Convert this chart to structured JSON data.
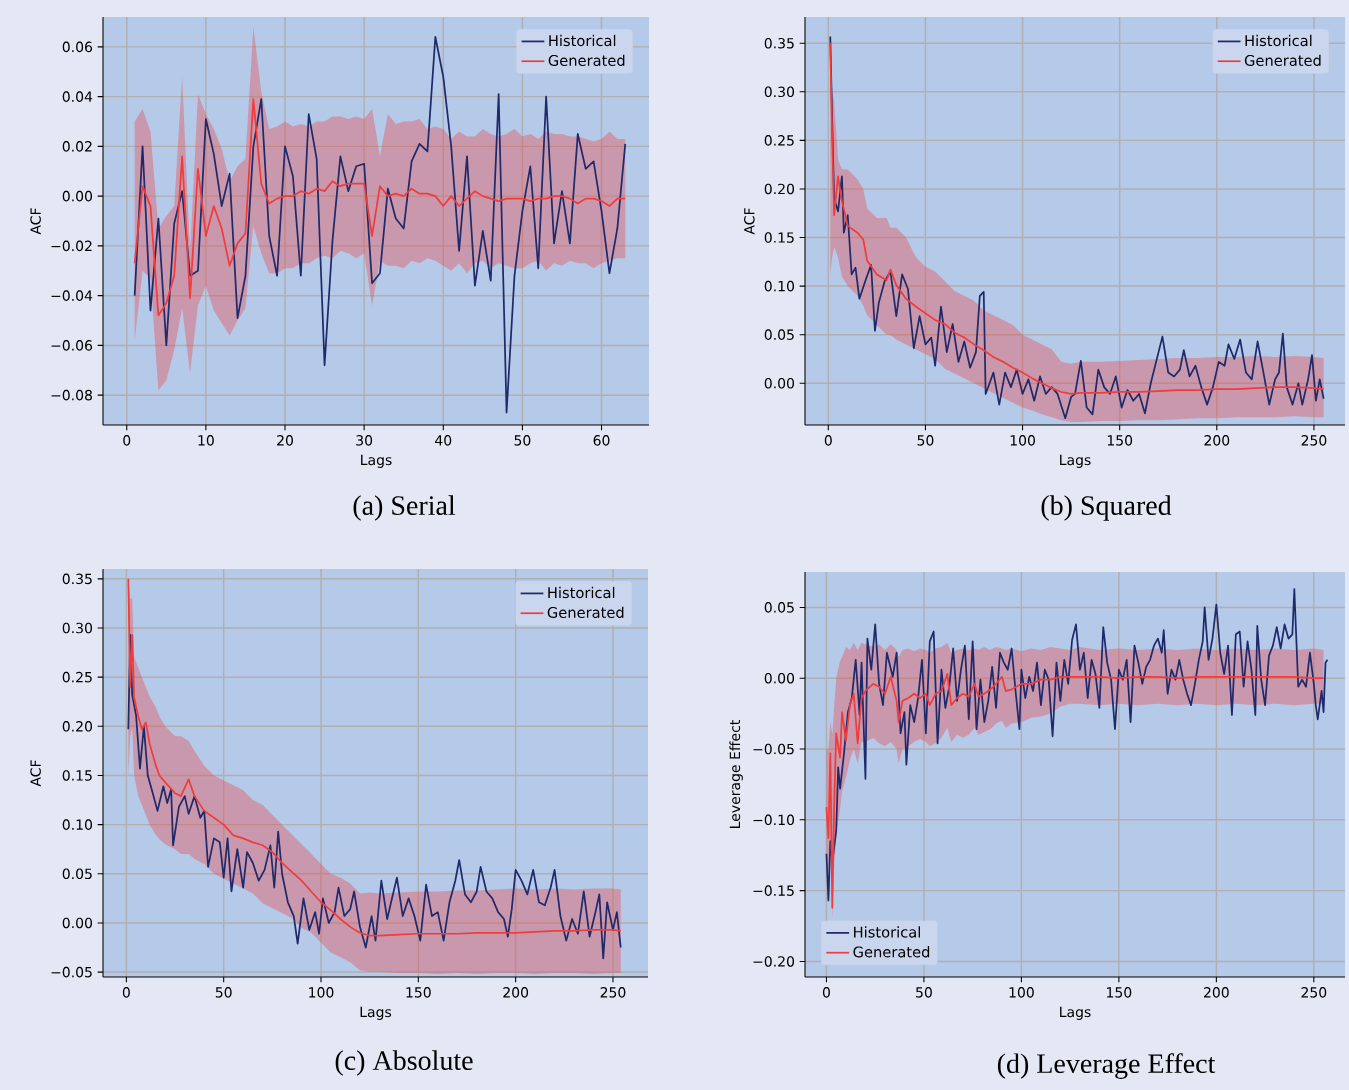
{
  "chart_data": [
    {
      "type": "line",
      "title": "(a) Serial",
      "xlabel": "Lags",
      "ylabel": "ACF",
      "xlim": [
        -3,
        66
      ],
      "ylim": [
        -0.092,
        0.072
      ],
      "xticks": [
        0,
        10,
        20,
        30,
        40,
        50,
        60
      ],
      "yticks": [
        {
          "value": -0.08,
          "label": "−0.08"
        },
        {
          "value": -0.06,
          "label": "−0.06"
        },
        {
          "value": -0.04,
          "label": "−0.04"
        },
        {
          "value": -0.02,
          "label": "−0.02"
        },
        {
          "value": 0,
          "label": "0.00"
        },
        {
          "value": 0.02,
          "label": "0.02"
        },
        {
          "value": 0.04,
          "label": "0.04"
        },
        {
          "value": 0.06,
          "label": "0.06"
        }
      ],
      "grid": true,
      "legend": "top right",
      "marker": "none",
      "line_style": "solid",
      "series": [
        {
          "name": "Historical",
          "color": "#1f2a6b",
          "x": [
            1,
            2,
            3,
            4,
            5,
            6,
            7,
            8,
            9,
            10,
            11,
            12,
            13,
            14,
            15,
            16,
            17,
            18,
            19,
            20,
            21,
            22,
            23,
            24,
            25,
            26,
            27,
            28,
            29,
            30,
            31,
            32,
            33,
            34,
            35,
            36,
            37,
            38,
            39,
            40,
            41,
            42,
            43,
            44,
            45,
            46,
            47,
            48,
            49,
            50,
            51,
            52,
            53,
            54,
            55,
            56,
            57,
            58,
            59,
            60,
            61,
            62,
            63
          ],
          "values": [
            -0.04,
            0.02,
            -0.046,
            -0.009,
            -0.06,
            -0.011,
            0.002,
            -0.032,
            -0.03,
            0.031,
            0.017,
            -0.004,
            0.009,
            -0.049,
            -0.032,
            0.02,
            0.039,
            -0.016,
            -0.032,
            0.02,
            0.008,
            -0.032,
            0.033,
            0.015,
            -0.068,
            -0.018,
            0.016,
            0.002,
            0.012,
            0.013,
            -0.035,
            -0.031,
            0.003,
            -0.009,
            -0.013,
            0.014,
            0.021,
            0.018,
            0.064,
            0.048,
            0.02,
            -0.022,
            0.016,
            -0.036,
            -0.014,
            -0.034,
            0.041,
            -0.087,
            -0.032,
            -0.006,
            0.012,
            -0.029,
            0.04,
            -0.019,
            0.002,
            -0.019,
            0.025,
            0.011,
            0.014,
            -0.006,
            -0.031,
            -0.013,
            0.021
          ]
        },
        {
          "name": "Generated",
          "color": "#f03c3c",
          "x": [
            1,
            2,
            3,
            4,
            5,
            6,
            7,
            8,
            9,
            10,
            11,
            12,
            13,
            14,
            15,
            16,
            17,
            18,
            19,
            20,
            21,
            22,
            23,
            24,
            25,
            26,
            27,
            28,
            29,
            30,
            31,
            32,
            33,
            34,
            35,
            36,
            37,
            38,
            39,
            40,
            41,
            42,
            43,
            44,
            45,
            46,
            47,
            48,
            49,
            50,
            51,
            52,
            53,
            54,
            55,
            56,
            57,
            58,
            59,
            60,
            61,
            62,
            63
          ],
          "values": [
            -0.027,
            0.004,
            -0.004,
            -0.048,
            -0.043,
            -0.032,
            0.016,
            -0.041,
            0.011,
            -0.016,
            -0.004,
            -0.013,
            -0.028,
            -0.019,
            -0.015,
            0.039,
            0.005,
            -0.003,
            -0.001,
            0.0,
            0.0,
            0.002,
            0.001,
            0.003,
            0.002,
            0.006,
            0.004,
            0.005,
            0.005,
            0.005,
            -0.016,
            0.004,
            0.0,
            0.001,
            0.0,
            0.003,
            0.001,
            0.001,
            0.0,
            -0.004,
            0.0,
            -0.004,
            -0.001,
            0.002,
            0.0,
            -0.001,
            -0.002,
            -0.001,
            -0.001,
            -0.001,
            -0.002,
            -0.001,
            -0.001,
            0.0,
            0.0,
            -0.001,
            -0.003,
            -0.001,
            -0.001,
            -0.002,
            -0.004,
            -0.001,
            -0.001
          ],
          "upper": [
            0.03,
            0.035,
            0.026,
            -0.013,
            -0.008,
            -0.004,
            0.048,
            -0.023,
            0.041,
            0.033,
            0.027,
            0.019,
            0.006,
            0.012,
            0.015,
            0.068,
            0.042,
            0.027,
            0.028,
            0.03,
            0.028,
            0.029,
            0.028,
            0.03,
            0.03,
            0.032,
            0.032,
            0.031,
            0.032,
            0.031,
            0.035,
            0.016,
            0.033,
            0.029,
            0.03,
            0.03,
            0.031,
            0.027,
            0.028,
            0.027,
            0.023,
            0.026,
            0.024,
            0.024,
            0.027,
            0.025,
            0.024,
            0.025,
            0.027,
            0.024,
            0.025,
            0.023,
            0.026,
            0.025,
            0.025,
            0.024,
            0.024,
            0.023,
            0.022,
            0.023,
            0.026,
            0.023,
            0.023
          ],
          "lower": [
            -0.058,
            -0.03,
            -0.033,
            -0.078,
            -0.074,
            -0.062,
            -0.045,
            -0.071,
            -0.044,
            -0.036,
            -0.046,
            -0.051,
            -0.056,
            -0.05,
            -0.045,
            -0.012,
            -0.023,
            -0.031,
            -0.031,
            -0.029,
            -0.029,
            -0.027,
            -0.027,
            -0.025,
            -0.024,
            -0.025,
            -0.022,
            -0.023,
            -0.025,
            -0.023,
            -0.044,
            -0.026,
            -0.028,
            -0.028,
            -0.029,
            -0.026,
            -0.027,
            -0.025,
            -0.026,
            -0.028,
            -0.03,
            -0.027,
            -0.031,
            -0.027,
            -0.026,
            -0.029,
            -0.027,
            -0.028,
            -0.029,
            -0.029,
            -0.027,
            -0.026,
            -0.03,
            -0.027,
            -0.028,
            -0.026,
            -0.027,
            -0.027,
            -0.029,
            -0.027,
            -0.026,
            -0.025,
            -0.025
          ]
        }
      ]
    },
    {
      "type": "line",
      "title": "(b) Squared",
      "xlabel": "Lags",
      "ylabel": "ACF",
      "xlim": [
        -12,
        266
      ],
      "ylim": [
        -0.043,
        0.377
      ],
      "xticks": [
        0,
        50,
        100,
        150,
        200,
        250
      ],
      "yticks": [
        {
          "value": 0,
          "label": "0.00"
        },
        {
          "value": 0.05,
          "label": "0.05"
        },
        {
          "value": 0.1,
          "label": "0.10"
        },
        {
          "value": 0.15,
          "label": "0.15"
        },
        {
          "value": 0.2,
          "label": "0.20"
        },
        {
          "value": 0.25,
          "label": "0.25"
        },
        {
          "value": 0.3,
          "label": "0.30"
        },
        {
          "value": 0.35,
          "label": "0.35"
        }
      ],
      "grid": true,
      "legend": "top right",
      "marker": "none",
      "line_style": "solid",
      "series": [
        {
          "name": "Historical",
          "color": "#1f2a6b",
          "x": [
            1,
            2,
            3,
            5,
            7,
            8,
            10,
            12,
            14,
            16,
            19,
            22,
            24,
            26,
            29,
            32,
            35,
            38,
            41,
            44,
            47,
            50,
            53,
            55,
            58,
            61,
            64,
            67,
            70,
            73,
            76,
            78,
            80,
            81,
            85,
            88,
            91,
            94,
            97,
            100,
            103,
            106,
            109,
            112,
            115,
            118,
            122,
            125,
            127,
            130,
            133,
            136,
            139,
            142,
            145,
            148,
            151,
            154,
            157,
            160,
            163,
            166,
            170,
            172,
            175,
            178,
            181,
            183,
            186,
            189,
            192,
            195,
            198,
            201,
            204,
            206,
            209,
            212,
            215,
            218,
            221,
            224,
            227,
            230,
            232,
            234,
            236,
            239,
            242,
            244,
            247,
            249,
            251,
            253,
            255
          ],
          "values": [
            0.357,
            0.27,
            0.19,
            0.177,
            0.213,
            0.155,
            0.173,
            0.112,
            0.119,
            0.087,
            0.105,
            0.122,
            0.054,
            0.083,
            0.105,
            0.115,
            0.069,
            0.112,
            0.097,
            0.036,
            0.069,
            0.04,
            0.047,
            0.018,
            0.079,
            0.032,
            0.061,
            0.022,
            0.043,
            0.016,
            0.032,
            0.09,
            0.094,
            -0.011,
            0.011,
            -0.022,
            0.011,
            -0.004,
            0.014,
            -0.011,
            0.004,
            -0.018,
            0.007,
            -0.011,
            -0.004,
            -0.011,
            -0.036,
            -0.014,
            -0.011,
            0.023,
            -0.025,
            -0.032,
            0.014,
            -0.004,
            -0.011,
            0.007,
            -0.025,
            -0.007,
            -0.018,
            -0.011,
            -0.031,
            0.0,
            0.032,
            0.048,
            0.011,
            0.007,
            0.014,
            0.034,
            0.007,
            0.018,
            -0.004,
            -0.022,
            -0.004,
            0.022,
            0.018,
            0.04,
            0.025,
            0.045,
            0.011,
            0.004,
            0.043,
            0.011,
            -0.022,
            0.004,
            0.011,
            0.051,
            -0.004,
            -0.022,
            0.0,
            -0.022,
            0.004,
            0.029,
            -0.018,
            0.004,
            -0.016
          ]
        },
        {
          "name": "Generated",
          "color": "#f03c3c",
          "x": [
            1,
            2,
            3,
            5,
            7,
            10,
            15,
            18,
            20,
            25,
            30,
            32,
            35,
            40,
            45,
            50,
            55,
            60,
            65,
            70,
            75,
            80,
            85,
            90,
            95,
            100,
            105,
            110,
            115,
            120,
            125,
            130,
            140,
            150,
            160,
            170,
            180,
            190,
            200,
            210,
            220,
            230,
            240,
            250,
            255
          ],
          "values": [
            0.35,
            0.253,
            0.173,
            0.213,
            0.188,
            0.162,
            0.155,
            0.148,
            0.126,
            0.112,
            0.106,
            0.117,
            0.101,
            0.087,
            0.079,
            0.072,
            0.065,
            0.061,
            0.052,
            0.047,
            0.04,
            0.034,
            0.027,
            0.022,
            0.016,
            0.011,
            0.005,
            0.0,
            -0.005,
            -0.009,
            -0.011,
            -0.01,
            -0.01,
            -0.009,
            -0.009,
            -0.008,
            -0.007,
            -0.007,
            -0.006,
            -0.006,
            -0.005,
            -0.004,
            -0.004,
            -0.005,
            -0.006
          ],
          "upper": [
            0.35,
            0.3,
            0.29,
            0.23,
            0.22,
            0.22,
            0.21,
            0.2,
            0.18,
            0.17,
            0.17,
            0.16,
            0.16,
            0.15,
            0.13,
            0.12,
            0.115,
            0.105,
            0.095,
            0.09,
            0.085,
            0.075,
            0.07,
            0.065,
            0.06,
            0.05,
            0.045,
            0.04,
            0.035,
            0.022,
            0.02,
            0.022,
            0.022,
            0.023,
            0.024,
            0.025,
            0.026,
            0.026,
            0.027,
            0.027,
            0.028,
            0.027,
            0.028,
            0.027,
            0.026
          ],
          "lower": [
            0.112,
            0.13,
            0.14,
            0.13,
            0.11,
            0.1,
            0.09,
            0.08,
            0.07,
            0.06,
            0.05,
            0.05,
            0.045,
            0.04,
            0.035,
            0.03,
            0.025,
            0.015,
            0.01,
            0.005,
            0.0,
            -0.005,
            -0.01,
            -0.015,
            -0.02,
            -0.025,
            -0.028,
            -0.032,
            -0.035,
            -0.038,
            -0.04,
            -0.04,
            -0.039,
            -0.039,
            -0.038,
            -0.038,
            -0.037,
            -0.036,
            -0.036,
            -0.035,
            -0.035,
            -0.035,
            -0.034,
            -0.035,
            -0.035
          ]
        }
      ]
    },
    {
      "type": "line",
      "title": "(c) Absolute",
      "xlabel": "Lags",
      "ylabel": "ACF",
      "xlim": [
        -12,
        268
      ],
      "ylim": [
        -0.055,
        0.36
      ],
      "xticks": [
        0,
        50,
        100,
        150,
        200,
        250
      ],
      "yticks": [
        {
          "value": -0.05,
          "label": "−0.05"
        },
        {
          "value": 0,
          "label": "0.00"
        },
        {
          "value": 0.05,
          "label": "0.05"
        },
        {
          "value": 0.1,
          "label": "0.10"
        },
        {
          "value": 0.15,
          "label": "0.15"
        },
        {
          "value": 0.2,
          "label": "0.20"
        },
        {
          "value": 0.25,
          "label": "0.25"
        },
        {
          "value": 0.3,
          "label": "0.30"
        },
        {
          "value": 0.35,
          "label": "0.35"
        }
      ],
      "grid": true,
      "legend": "top right",
      "marker": "none",
      "line_style": "solid",
      "series": [
        {
          "name": "Historical",
          "color": "#1f2a6b",
          "x": [
            1,
            2,
            3,
            5,
            7,
            9,
            11,
            13,
            16,
            19,
            21,
            23,
            24,
            27,
            30,
            32,
            35,
            38,
            40,
            42,
            45,
            48,
            50,
            52,
            54,
            57,
            60,
            62,
            65,
            68,
            71,
            74,
            76,
            78,
            80,
            83,
            86,
            88,
            91,
            94,
            97,
            99,
            101,
            104,
            107,
            109,
            112,
            115,
            117,
            120,
            123,
            126,
            128,
            131,
            134,
            136,
            139,
            142,
            145,
            148,
            151,
            154,
            157,
            160,
            163,
            166,
            169,
            171,
            174,
            177,
            180,
            182,
            185,
            188,
            191,
            194,
            196,
            198,
            200,
            203,
            206,
            209,
            212,
            215,
            218,
            220,
            223,
            226,
            229,
            232,
            235,
            238,
            241,
            243,
            245,
            247,
            250,
            252,
            254
          ],
          "values": [
            0.197,
            0.293,
            0.232,
            0.211,
            0.157,
            0.2,
            0.15,
            0.136,
            0.114,
            0.139,
            0.122,
            0.136,
            0.079,
            0.118,
            0.129,
            0.111,
            0.129,
            0.107,
            0.114,
            0.057,
            0.086,
            0.082,
            0.046,
            0.086,
            0.032,
            0.075,
            0.036,
            0.072,
            0.061,
            0.043,
            0.054,
            0.079,
            0.036,
            0.093,
            0.05,
            0.021,
            0.007,
            -0.021,
            0.025,
            -0.007,
            0.011,
            -0.011,
            0.025,
            0.0,
            0.011,
            0.036,
            0.007,
            0.014,
            0.032,
            -0.004,
            -0.025,
            0.007,
            -0.018,
            0.043,
            0.004,
            0.021,
            0.046,
            0.007,
            0.025,
            0.007,
            -0.018,
            0.039,
            0.007,
            0.011,
            -0.018,
            0.021,
            0.043,
            0.064,
            0.029,
            0.021,
            0.032,
            0.057,
            0.032,
            0.025,
            0.011,
            0.004,
            -0.014,
            0.014,
            0.054,
            0.043,
            0.029,
            0.054,
            0.021,
            0.018,
            0.036,
            0.054,
            0.007,
            -0.018,
            0.004,
            -0.011,
            0.032,
            -0.014,
            0.011,
            0.029,
            -0.036,
            0.021,
            -0.007,
            0.011,
            -0.025
          ]
        },
        {
          "name": "Generated",
          "color": "#f03c3c",
          "x": [
            1,
            2,
            3,
            4,
            6,
            8,
            10,
            12,
            15,
            17,
            20,
            25,
            28,
            32,
            35,
            40,
            45,
            50,
            55,
            60,
            65,
            70,
            75,
            80,
            85,
            90,
            95,
            100,
            105,
            110,
            115,
            120,
            125,
            130,
            140,
            150,
            160,
            170,
            180,
            190,
            200,
            210,
            220,
            230,
            240,
            250,
            254
          ],
          "values": [
            0.35,
            0.24,
            0.293,
            0.229,
            0.211,
            0.197,
            0.204,
            0.182,
            0.161,
            0.15,
            0.143,
            0.132,
            0.129,
            0.146,
            0.129,
            0.114,
            0.107,
            0.1,
            0.089,
            0.086,
            0.082,
            0.079,
            0.072,
            0.061,
            0.052,
            0.043,
            0.032,
            0.021,
            0.013,
            0.004,
            -0.004,
            -0.01,
            -0.013,
            -0.013,
            -0.012,
            -0.011,
            -0.011,
            -0.011,
            -0.01,
            -0.01,
            -0.01,
            -0.009,
            -0.008,
            -0.008,
            -0.007,
            -0.007,
            -0.008
          ],
          "upper": [
            0.35,
            0.33,
            0.33,
            0.27,
            0.26,
            0.25,
            0.24,
            0.23,
            0.22,
            0.21,
            0.2,
            0.19,
            0.19,
            0.185,
            0.175,
            0.16,
            0.15,
            0.145,
            0.14,
            0.135,
            0.125,
            0.12,
            0.11,
            0.1,
            0.09,
            0.08,
            0.07,
            0.06,
            0.05,
            0.046,
            0.04,
            0.03,
            0.031,
            0.03,
            0.031,
            0.032,
            0.032,
            0.033,
            0.033,
            0.034,
            0.035,
            0.034,
            0.035,
            0.034,
            0.035,
            0.035,
            0.034
          ],
          "lower": [
            0.15,
            0.19,
            0.2,
            0.15,
            0.13,
            0.12,
            0.11,
            0.1,
            0.09,
            0.085,
            0.08,
            0.075,
            0.07,
            0.07,
            0.065,
            0.06,
            0.05,
            0.045,
            0.04,
            0.035,
            0.03,
            0.02,
            0.015,
            0.01,
            0.005,
            -0.005,
            -0.01,
            -0.02,
            -0.03,
            -0.035,
            -0.04,
            -0.048,
            -0.05,
            -0.05,
            -0.051,
            -0.051,
            -0.052,
            -0.051,
            -0.052,
            -0.051,
            -0.051,
            -0.052,
            -0.051,
            -0.051,
            -0.052,
            -0.051,
            -0.051
          ]
        }
      ]
    },
    {
      "type": "line",
      "title": "(d) Leverage Effect",
      "xlabel": "Lags",
      "ylabel": "Leverage Effect",
      "xlim": [
        -11,
        266
      ],
      "ylim": [
        -0.211,
        0.075
      ],
      "xticks": [
        0,
        50,
        100,
        150,
        200,
        250
      ],
      "yticks": [
        {
          "value": -0.2,
          "label": "−0.20"
        },
        {
          "value": -0.15,
          "label": "−0.15"
        },
        {
          "value": -0.1,
          "label": "−0.10"
        },
        {
          "value": -0.05,
          "label": "−0.05"
        },
        {
          "value": 0,
          "label": "0.00"
        },
        {
          "value": 0.05,
          "label": "0.05"
        }
      ],
      "grid": true,
      "legend": "bottom left",
      "marker": "none",
      "line_style": "solid",
      "series": [
        {
          "name": "Historical",
          "color": "#1f2a6b",
          "x": [
            0,
            1,
            2,
            3,
            5,
            6,
            7,
            9,
            11,
            13,
            15,
            17,
            18,
            20,
            21,
            23,
            25,
            27,
            29,
            31,
            34,
            36,
            38,
            40,
            41,
            43,
            45,
            47,
            49,
            51,
            53,
            55,
            57,
            59,
            61,
            63,
            65,
            67,
            69,
            71,
            73,
            75,
            77,
            79,
            81,
            83,
            85,
            87,
            89,
            91,
            93,
            95,
            97,
            99,
            100,
            102,
            104,
            106,
            108,
            110,
            112,
            114,
            116,
            118,
            120,
            122,
            124,
            126,
            128,
            130,
            132,
            134,
            136,
            138,
            140,
            142,
            144,
            146,
            148,
            150,
            152,
            154,
            156,
            158,
            160,
            162,
            164,
            166,
            168,
            170,
            172,
            173,
            175,
            177,
            179,
            181,
            183,
            185,
            187,
            189,
            191,
            193,
            194,
            196,
            198,
            200,
            202,
            204,
            206,
            208,
            210,
            212,
            214,
            216,
            218,
            220,
            221,
            223,
            225,
            227,
            229,
            231,
            233,
            235,
            237,
            239,
            240,
            242,
            244,
            246,
            248,
            250,
            251,
            252,
            254,
            255,
            256,
            257
          ],
          "values": [
            -0.124,
            -0.157,
            -0.115,
            -0.13,
            -0.108,
            -0.063,
            -0.078,
            -0.053,
            -0.024,
            -0.014,
            0.013,
            -0.026,
            0.011,
            -0.071,
            0.028,
            0.006,
            0.038,
            -0.004,
            -0.019,
            0.018,
            0.001,
            0.018,
            -0.039,
            -0.024,
            -0.061,
            -0.019,
            -0.031,
            -0.014,
            0.013,
            -0.039,
            0.026,
            0.033,
            -0.046,
            0.006,
            -0.021,
            -0.006,
            0.021,
            -0.016,
            0.006,
            0.023,
            -0.029,
            0.026,
            -0.036,
            -0.001,
            -0.031,
            -0.016,
            0.008,
            -0.021,
            0.018,
            0.011,
            0.006,
            0.021,
            -0.009,
            -0.036,
            0.006,
            -0.014,
            0.001,
            -0.009,
            0.011,
            -0.019,
            0.006,
            -0.001,
            -0.041,
            0.011,
            -0.016,
            0.013,
            -0.004,
            0.027,
            0.038,
            0.006,
            0.018,
            -0.014,
            0.013,
            0.003,
            -0.021,
            0.036,
            0.011,
            -0.001,
            -0.036,
            0.006,
            -0.001,
            0.013,
            -0.031,
            0.023,
            0.011,
            -0.004,
            0.008,
            0.013,
            0.023,
            0.028,
            0.018,
            0.034,
            -0.011,
            0.006,
            -0.001,
            0.013,
            -0.001,
            -0.011,
            -0.019,
            -0.004,
            0.013,
            0.026,
            0.05,
            0.013,
            0.028,
            0.052,
            0.018,
            0.003,
            0.023,
            -0.026,
            0.031,
            0.033,
            -0.006,
            0.026,
            0.006,
            -0.026,
            0.037,
            -0.001,
            -0.019,
            0.016,
            0.023,
            0.036,
            0.021,
            0.038,
            0.028,
            0.031,
            0.063,
            -0.006,
            -0.001,
            -0.006,
            0.018,
            -0.004,
            -0.019,
            -0.029,
            -0.009,
            -0.024,
            0.011,
            0.013
          ]
        },
        {
          "name": "Generated",
          "color": "#f03c3c",
          "x": [
            0,
            1,
            2,
            3,
            4,
            5,
            7,
            8,
            10,
            12,
            14,
            16,
            18,
            20,
            24,
            27,
            30,
            33,
            36,
            37,
            39,
            42,
            45,
            48,
            51,
            53,
            56,
            59,
            62,
            64,
            67,
            70,
            73,
            76,
            78,
            81,
            84,
            87,
            90,
            92,
            95,
            100,
            105,
            110,
            115,
            120,
            125,
            130,
            140,
            150,
            160,
            170,
            180,
            190,
            200,
            210,
            220,
            230,
            240,
            250,
            255
          ],
          "values": [
            -0.091,
            -0.113,
            -0.053,
            -0.162,
            -0.088,
            -0.039,
            -0.056,
            -0.024,
            -0.044,
            -0.019,
            -0.011,
            -0.046,
            -0.014,
            -0.009,
            -0.004,
            -0.006,
            -0.011,
            0.001,
            -0.016,
            -0.031,
            -0.016,
            -0.014,
            -0.011,
            -0.014,
            -0.011,
            -0.019,
            -0.011,
            -0.009,
            0.003,
            -0.019,
            -0.014,
            -0.011,
            -0.013,
            -0.004,
            -0.013,
            -0.011,
            -0.008,
            -0.004,
            0.001,
            -0.009,
            -0.008,
            -0.004,
            -0.004,
            -0.001,
            -0.001,
            0.001,
            0.001,
            0.001,
            0.001,
            0.0,
            0.001,
            0.001,
            0.0,
            0.001,
            0.001,
            0.001,
            0.001,
            0.001,
            0.001,
            0.0,
            0.0
          ],
          "upper": [
            -0.05,
            -0.05,
            -0.03,
            -0.04,
            -0.02,
            0.0,
            0.012,
            0.015,
            0.022,
            0.02,
            0.025,
            0.02,
            0.025,
            0.024,
            0.022,
            0.024,
            0.02,
            0.024,
            0.02,
            0.015,
            0.02,
            0.021,
            0.019,
            0.021,
            0.02,
            0.018,
            0.021,
            0.022,
            0.025,
            0.018,
            0.02,
            0.021,
            0.02,
            0.021,
            0.02,
            0.022,
            0.02,
            0.022,
            0.021,
            0.02,
            0.021,
            0.019,
            0.021,
            0.02,
            0.022,
            0.021,
            0.02,
            0.022,
            0.02,
            0.021,
            0.02,
            0.021,
            0.02,
            0.021,
            0.02,
            0.021,
            0.02,
            0.021,
            0.02,
            0.021,
            0.02
          ],
          "lower": [
            -0.12,
            -0.14,
            -0.12,
            -0.17,
            -0.13,
            -0.11,
            -0.092,
            -0.08,
            -0.07,
            -0.058,
            -0.05,
            -0.06,
            -0.045,
            -0.045,
            -0.042,
            -0.046,
            -0.048,
            -0.045,
            -0.05,
            -0.06,
            -0.05,
            -0.048,
            -0.045,
            -0.043,
            -0.045,
            -0.048,
            -0.046,
            -0.042,
            -0.035,
            -0.045,
            -0.04,
            -0.042,
            -0.04,
            -0.035,
            -0.04,
            -0.038,
            -0.036,
            -0.032,
            -0.03,
            -0.035,
            -0.032,
            -0.031,
            -0.028,
            -0.027,
            -0.025,
            -0.02,
            -0.018,
            -0.018,
            -0.019,
            -0.018,
            -0.019,
            -0.018,
            -0.019,
            -0.018,
            -0.019,
            -0.018,
            -0.019,
            -0.018,
            -0.019,
            -0.018,
            -0.018
          ]
        }
      ]
    }
  ]
}
